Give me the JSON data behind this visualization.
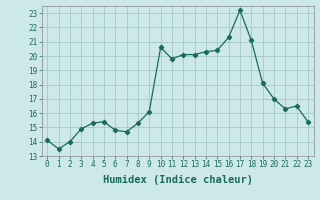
{
  "x": [
    0,
    1,
    2,
    3,
    4,
    5,
    6,
    7,
    8,
    9,
    10,
    11,
    12,
    13,
    14,
    15,
    16,
    17,
    18,
    19,
    20,
    21,
    22,
    23
  ],
  "y": [
    14.1,
    13.5,
    14.0,
    14.9,
    15.3,
    15.4,
    14.8,
    14.7,
    15.3,
    16.1,
    20.6,
    19.8,
    20.1,
    20.1,
    20.3,
    20.4,
    21.3,
    23.2,
    21.1,
    18.1,
    17.0,
    16.3,
    16.5,
    15.4
  ],
  "line_color": "#1a6b5a",
  "marker": "D",
  "marker_size": 2.2,
  "bg_color": "#cce8e8",
  "grid_color": "#aacccc",
  "xlabel": "Humidex (Indice chaleur)",
  "ylim": [
    13,
    23.5
  ],
  "xlim": [
    -0.5,
    23.5
  ],
  "yticks": [
    13,
    14,
    15,
    16,
    17,
    18,
    19,
    20,
    21,
    22,
    23
  ],
  "xticks": [
    0,
    1,
    2,
    3,
    4,
    5,
    6,
    7,
    8,
    9,
    10,
    11,
    12,
    13,
    14,
    15,
    16,
    17,
    18,
    19,
    20,
    21,
    22,
    23
  ],
  "tick_fontsize": 5.5,
  "xlabel_fontsize": 7.5
}
